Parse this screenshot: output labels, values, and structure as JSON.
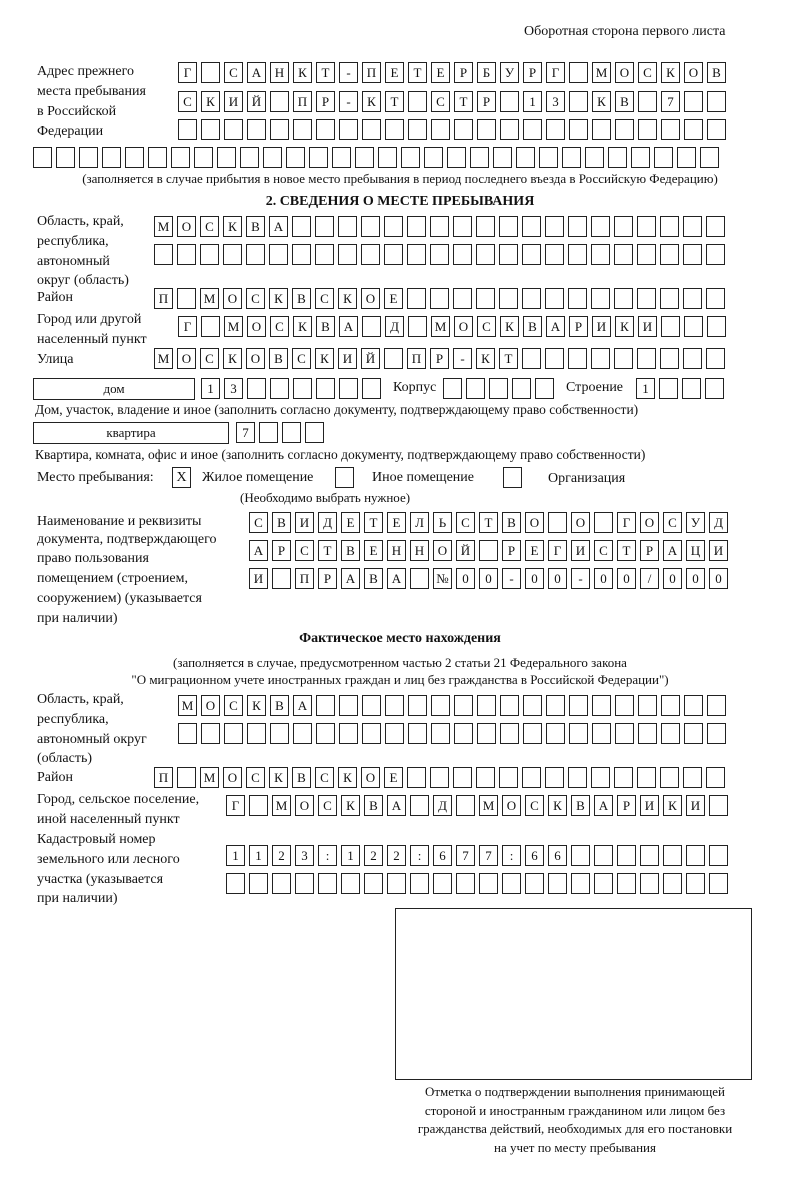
{
  "header": "Оборотная сторона первого листа",
  "previous_address": {
    "label": [
      "Адрес прежнего",
      "места пребывания",
      "в Российской",
      "Федерации"
    ],
    "rows": [
      [
        "Г",
        "",
        "С",
        "А",
        "Н",
        "К",
        "Т",
        "-",
        "П",
        "Е",
        "Т",
        "Е",
        "Р",
        "Б",
        "У",
        "Р",
        "Г",
        "",
        "М",
        "О",
        "С",
        "К",
        "О",
        "В"
      ],
      [
        "С",
        "К",
        "И",
        "Й",
        "",
        "П",
        "Р",
        "-",
        "К",
        "Т",
        "",
        "С",
        "Т",
        "Р",
        "",
        "1",
        "3",
        "",
        "К",
        "В",
        "",
        "7",
        "",
        ""
      ],
      [
        "",
        "",
        "",
        "",
        "",
        "",
        "",
        "",
        "",
        "",
        "",
        "",
        "",
        "",
        "",
        "",
        "",
        "",
        "",
        "",
        "",
        "",
        "",
        ""
      ],
      [
        "",
        "",
        "",
        "",
        "",
        "",
        "",
        "",
        "",
        "",
        "",
        "",
        "",
        "",
        "",
        "",
        "",
        "",
        "",
        "",
        "",
        "",
        "",
        "",
        "",
        "",
        "",
        "",
        "",
        ""
      ]
    ],
    "note": "(заполняется в случае прибытия в новое место пребывания в период последнего въезда в Российскую Федерацию)"
  },
  "section2": {
    "title": "2. СВЕДЕНИЯ О МЕСТЕ ПРЕБЫВАНИЯ",
    "region_label": [
      "Область, край,",
      "республика,",
      "автономный",
      "округ (область)"
    ],
    "region_rows": [
      [
        "М",
        "О",
        "С",
        "К",
        "В",
        "А",
        "",
        "",
        "",
        "",
        "",
        "",
        "",
        "",
        "",
        "",
        "",
        "",
        "",
        "",
        "",
        "",
        "",
        "",
        ""
      ],
      [
        "",
        "",
        "",
        "",
        "",
        "",
        "",
        "",
        "",
        "",
        "",
        "",
        "",
        "",
        "",
        "",
        "",
        "",
        "",
        "",
        "",
        "",
        "",
        "",
        ""
      ]
    ],
    "district_label": "Район",
    "district_row": [
      "П",
      "",
      "М",
      "О",
      "С",
      "К",
      "В",
      "С",
      "К",
      "О",
      "Е",
      "",
      "",
      "",
      "",
      "",
      "",
      "",
      "",
      "",
      "",
      "",
      "",
      "",
      ""
    ],
    "city_label": [
      "Город или другой",
      "населенный пункт"
    ],
    "city_row": [
      "Г",
      "",
      "М",
      "О",
      "С",
      "К",
      "В",
      "А",
      "",
      "Д",
      "",
      "М",
      "О",
      "С",
      "К",
      "В",
      "А",
      "Р",
      "И",
      "К",
      "И",
      "",
      "",
      ""
    ],
    "street_label": "Улица",
    "street_row": [
      "М",
      "О",
      "С",
      "К",
      "О",
      "В",
      "С",
      "К",
      "И",
      "Й",
      "",
      "П",
      "Р",
      "-",
      "К",
      "Т",
      "",
      "",
      "",
      "",
      "",
      "",
      "",
      "",
      ""
    ],
    "house_type": "дом",
    "house_row": [
      "1",
      "3",
      "",
      "",
      "",
      "",
      "",
      ""
    ],
    "korpus_label": "Корпус",
    "korpus_row": [
      "",
      "",
      "",
      "",
      ""
    ],
    "building_label": "Строение",
    "building_row": [
      "1",
      "",
      "",
      ""
    ],
    "house_note": "Дом, участок, владение и иное (заполнить согласно документу, подтверждающему право собственности)",
    "apartment_type": "квартира",
    "apartment_row": [
      "7",
      "",
      "",
      ""
    ],
    "apartment_note": "Квартира, комната, офис и иное (заполнить согласно документу, подтверждающему право собственности)",
    "stay_place_label": "Место пребывания:",
    "stay_options": [
      {
        "label": "Жилое помещение",
        "mark": "X"
      },
      {
        "label": "Иное помещение",
        "mark": ""
      },
      {
        "label": "Организация",
        "mark": ""
      }
    ],
    "stay_note": "(Необходимо выбрать нужное)",
    "document_label": [
      "Наименование и реквизиты",
      "документа, подтверждающего",
      "право пользования",
      "помещением (строением,",
      "сооружением) (указывается",
      "при наличии)"
    ],
    "document_rows": [
      [
        "С",
        "В",
        "И",
        "Д",
        "Е",
        "Т",
        "Е",
        "Л",
        "Ь",
        "С",
        "Т",
        "В",
        "О",
        "",
        "О",
        "",
        "Г",
        "О",
        "С",
        "У",
        "Д"
      ],
      [
        "А",
        "Р",
        "С",
        "Т",
        "В",
        "Е",
        "Н",
        "Н",
        "О",
        "Й",
        "",
        "Р",
        "Е",
        "Г",
        "И",
        "С",
        "Т",
        "Р",
        "А",
        "Ц",
        "И"
      ],
      [
        "И",
        "",
        "П",
        "Р",
        "А",
        "В",
        "А",
        "",
        "№",
        "0",
        "0",
        "-",
        "0",
        "0",
        "-",
        "0",
        "0",
        "/",
        "0",
        "0",
        "0"
      ]
    ]
  },
  "actual": {
    "title": "Фактическое место нахождения",
    "note": [
      "(заполняется в случае, предусмотренном частью 2 статьи 21 Федерального закона",
      "\"О миграционном учете иностранных граждан и лиц без гражданства в Российской Федерации\")"
    ],
    "region_label": [
      "Область, край,",
      "республика,",
      "автономный округ",
      "(область)"
    ],
    "region_rows": [
      [
        "М",
        "О",
        "С",
        "К",
        "В",
        "А",
        "",
        "",
        "",
        "",
        "",
        "",
        "",
        "",
        "",
        "",
        "",
        "",
        "",
        "",
        "",
        "",
        "",
        ""
      ],
      [
        "",
        "",
        "",
        "",
        "",
        "",
        "",
        "",
        "",
        "",
        "",
        "",
        "",
        "",
        "",
        "",
        "",
        "",
        "",
        "",
        "",
        "",
        "",
        ""
      ]
    ],
    "district_label": "Район",
    "district_row": [
      "П",
      "",
      "М",
      "О",
      "С",
      "К",
      "В",
      "С",
      "К",
      "О",
      "Е",
      "",
      "",
      "",
      "",
      "",
      "",
      "",
      "",
      "",
      "",
      "",
      "",
      "",
      ""
    ],
    "city_label": [
      "Город, сельское поселение,",
      "иной населенный пункт"
    ],
    "city_row": [
      "Г",
      "",
      "М",
      "О",
      "С",
      "К",
      "В",
      "А",
      "",
      "Д",
      "",
      "М",
      "О",
      "С",
      "К",
      "В",
      "А",
      "Р",
      "И",
      "К",
      "И",
      ""
    ],
    "cadastral_label": [
      "Кадастровый номер",
      "земельного или лесного",
      "участка (указывается",
      "при наличии)"
    ],
    "cadastral_rows": [
      [
        "1",
        "1",
        "2",
        "3",
        ":",
        "1",
        "2",
        "2",
        ":",
        "6",
        "7",
        "7",
        ":",
        "6",
        "6",
        "",
        "",
        "",
        "",
        "",
        "",
        ""
      ],
      [
        "",
        "",
        "",
        "",
        "",
        "",
        "",
        "",
        "",
        "",
        "",
        "",
        "",
        "",
        "",
        "",
        "",
        "",
        "",
        "",
        "",
        ""
      ]
    ]
  },
  "confirmation_caption": [
    "Отметка о подтверждении выполнения принимающей",
    "стороной и иностранным гражданином или лицом без",
    "гражданства действий, необходимых для его постановки",
    "на учет по месту пребывания"
  ]
}
